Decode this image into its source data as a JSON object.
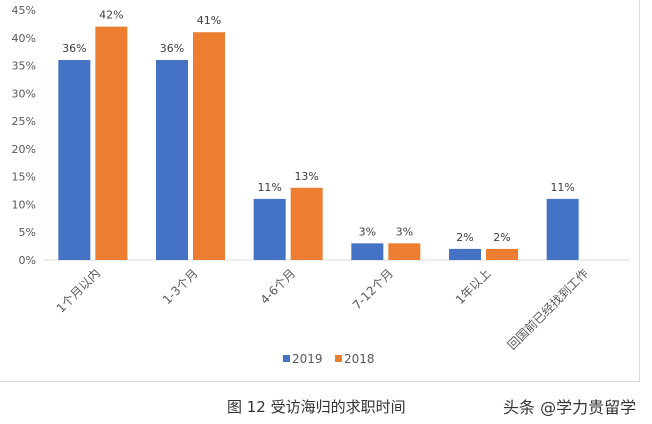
{
  "chart_data": {
    "type": "bar",
    "categories": [
      "1个月以内",
      "1-3个月",
      "4-6个月",
      "7-12个月",
      "1年以上",
      "回国前已经找到工作"
    ],
    "series": [
      {
        "name": "2019",
        "values": [
          36,
          36,
          11,
          3,
          2,
          11
        ],
        "labels": [
          "36%",
          "36%",
          "11%",
          "3%",
          "2%",
          "11%"
        ],
        "color": "#4472c4"
      },
      {
        "name": "2018",
        "values": [
          42,
          41,
          13,
          3,
          2,
          null
        ],
        "labels": [
          "42%",
          "41%",
          "13%",
          "3%",
          "2%",
          ""
        ],
        "color": "#ed7d31"
      }
    ],
    "ylim": [
      0,
      45
    ],
    "yticks": [
      "0%",
      "5%",
      "10%",
      "15%",
      "20%",
      "25%",
      "30%",
      "35%",
      "40%",
      "45%"
    ],
    "grid": false,
    "legend": "bottom",
    "title": ""
  },
  "caption": "图 12  受访海归的求职时间",
  "watermark": "头条 @学力贵留学"
}
